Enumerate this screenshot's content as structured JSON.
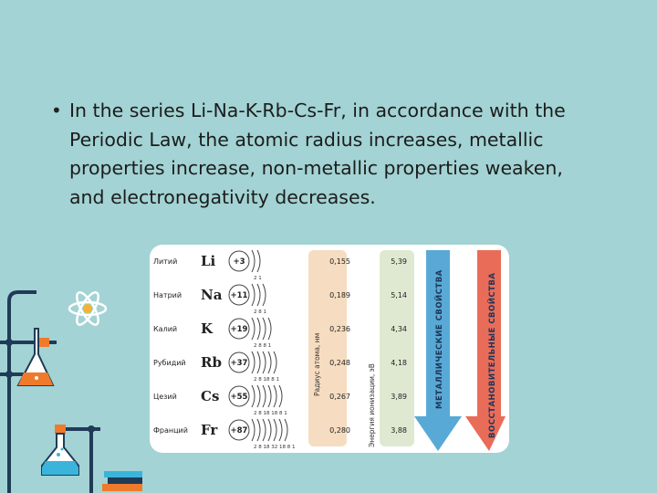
{
  "slide": {
    "bullet_text": "In the series Li-Na-K-Rb-Cs-Fr, in accordance with the Periodic Law, the atomic radius increases, metallic properties increase, non-metallic properties weaken, and electronegativity decreases."
  },
  "figure": {
    "elements": [
      {
        "name": "Литий",
        "symbol": "Li",
        "charge": "+3",
        "shells": "2 1",
        "radius": "0,155",
        "ionization": "5,39",
        "arcs": 2
      },
      {
        "name": "Натрий",
        "symbol": "Na",
        "charge": "+11",
        "shells": "2 8 1",
        "radius": "0,189",
        "ionization": "5,14",
        "arcs": 3
      },
      {
        "name": "Калий",
        "symbol": "K",
        "charge": "+19",
        "shells": "2 8 8 1",
        "radius": "0,236",
        "ionization": "4,34",
        "arcs": 4
      },
      {
        "name": "Рубидий",
        "symbol": "Rb",
        "charge": "+37",
        "shells": "2 8 18 8 1",
        "radius": "0,248",
        "ionization": "4,18",
        "arcs": 5
      },
      {
        "name": "Цезий",
        "symbol": "Cs",
        "charge": "+55",
        "shells": "2 8 18 18 8 1",
        "radius": "0,267",
        "ionization": "3,89",
        "arcs": 6
      },
      {
        "name": "Франций",
        "symbol": "Fr",
        "charge": "+87",
        "shells": "2 8 18 32 18 8 1",
        "radius": "0,280",
        "ionization": "3,88",
        "arcs": 7
      }
    ],
    "radius_label": "Радиус атома, нм",
    "ionization_label": "Энергия ионизации, эВ",
    "metallic_label": "МЕТАЛЛИЧЕСКИЕ СВОЙСТВА",
    "reducing_label": "ВОССТАНОВИТЕЛЬНЫЕ СВОЙСТВА",
    "colors": {
      "radius_column": "#f6dcc0",
      "ionization_column": "#dfe9d2",
      "metallic_arrow": "#58a9d6",
      "reducing_arrow": "#e96c59"
    }
  },
  "decor": {
    "icons": [
      "atom-icon",
      "flask-icon",
      "beaker-icon",
      "books-icon"
    ],
    "colors": {
      "lab_stand": "#203b57",
      "flask_liquid": "#f07a2b",
      "beaker_liquid": "#3bb4dc"
    }
  }
}
